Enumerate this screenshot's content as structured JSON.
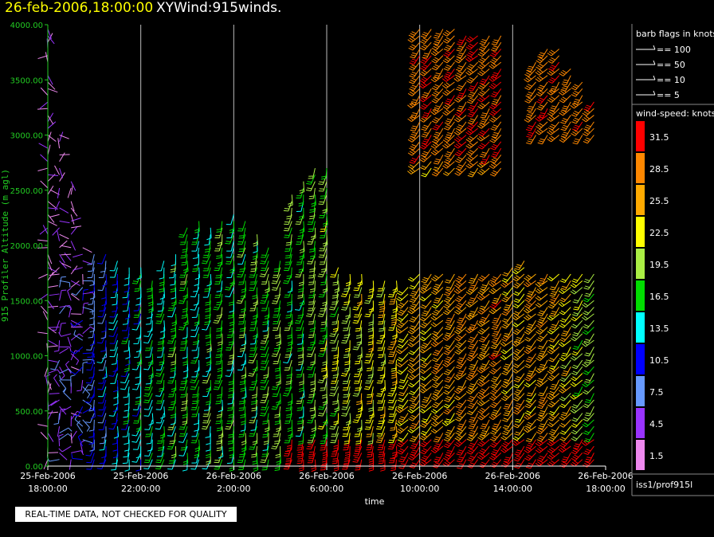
{
  "header": {
    "date": "26-feb-2006,18:00:00",
    "name": "XYWind:915winds."
  },
  "footer": {
    "qc_note": "REAL-TIME DATA, NOT CHECKED FOR QUALITY"
  },
  "legend": {
    "barb_title": "barb flags in knots",
    "barb_items": [
      "== 100",
      "== 50",
      "== 10",
      "== 5"
    ],
    "speed_title": "wind-speed: knots",
    "speed_bins": [
      {
        "label": "31.5",
        "color": "#ff0000"
      },
      {
        "label": "28.5",
        "color": "#ff8800"
      },
      {
        "label": "25.5",
        "color": "#ffaa00"
      },
      {
        "label": "22.5",
        "color": "#ffff00"
      },
      {
        "label": "19.5",
        "color": "#aaee44"
      },
      {
        "label": "16.5",
        "color": "#00dd00"
      },
      {
        "label": "13.5",
        "color": "#00ffff"
      },
      {
        "label": "10.5",
        "color": "#0000ff"
      },
      {
        "label": "7.5",
        "color": "#6699ff"
      },
      {
        "label": "4.5",
        "color": "#9933ff"
      },
      {
        "label": "1.5",
        "color": "#ee88ee"
      }
    ],
    "station": "iss1/prof915l"
  },
  "chart_data": {
    "type": "scatter",
    "subtype": "wind-barb time-height",
    "xlabel": "time",
    "ylabel": "915 Profiler Altitude (m agl)",
    "ylim": [
      0,
      4000
    ],
    "yticks": [
      "0.00",
      "500.00",
      "1000.00",
      "1500.00",
      "2000.00",
      "2500.00",
      "3000.00",
      "3500.00",
      "4000.00"
    ],
    "xticks": [
      {
        "date": "25-Feb-2006",
        "time": "18:00:00"
      },
      {
        "date": "25-Feb-2006",
        "time": "22:00:00"
      },
      {
        "date": "26-Feb-2006",
        "time": "2:00:00"
      },
      {
        "date": "26-Feb-2006",
        "time": "6:00:00"
      },
      {
        "date": "26-Feb-2006",
        "time": "10:00:00"
      },
      {
        "date": "26-Feb-2006",
        "time": "14:00:00"
      },
      {
        "date": "26-Feb-2006",
        "time": "18:00:00"
      }
    ],
    "xlim_hours": [
      0,
      24
    ],
    "grid": "vertical",
    "profile_interval_hours": 0.5,
    "profiles": [
      {
        "t": 0.0,
        "top": 4000,
        "spd": 3
      },
      {
        "t": 0.5,
        "top": 3000,
        "spd": 6
      },
      {
        "t": 1.0,
        "top": 2600,
        "spd": 5
      },
      {
        "t": 1.5,
        "top": 2000,
        "spd": 8
      },
      {
        "t": 2.0,
        "top": 1950,
        "spd": 9
      },
      {
        "t": 2.5,
        "top": 1950,
        "spd": 10
      },
      {
        "t": 3.0,
        "top": 1900,
        "spd": 12
      },
      {
        "t": 3.5,
        "top": 1800,
        "spd": 13
      },
      {
        "t": 4.0,
        "top": 1800,
        "spd": 14
      },
      {
        "t": 4.5,
        "top": 1700,
        "spd": 15
      },
      {
        "t": 5.0,
        "top": 1900,
        "spd": 15
      },
      {
        "t": 5.5,
        "top": 1950,
        "spd": 16
      },
      {
        "t": 6.0,
        "top": 2200,
        "spd": 16
      },
      {
        "t": 6.5,
        "top": 2250,
        "spd": 15
      },
      {
        "t": 7.0,
        "top": 2200,
        "spd": 16
      },
      {
        "t": 7.5,
        "top": 2250,
        "spd": 17
      },
      {
        "t": 8.0,
        "top": 2300,
        "spd": 16
      },
      {
        "t": 8.5,
        "top": 2250,
        "spd": 16
      },
      {
        "t": 9.0,
        "top": 2100,
        "spd": 17
      },
      {
        "t": 9.5,
        "top": 2000,
        "spd": 17
      },
      {
        "t": 10.0,
        "top": 1900,
        "spd": 18
      },
      {
        "t": 10.5,
        "top": 2500,
        "spd": 17
      },
      {
        "t": 11.0,
        "top": 2600,
        "spd": 17
      },
      {
        "t": 11.5,
        "top": 2700,
        "spd": 18
      },
      {
        "t": 12.0,
        "top": 2700,
        "spd": 19
      },
      {
        "t": 12.5,
        "top": 1800,
        "spd": 20
      },
      {
        "t": 13.0,
        "top": 1750,
        "spd": 21
      },
      {
        "t": 13.5,
        "top": 1750,
        "spd": 22
      },
      {
        "t": 14.0,
        "top": 1700,
        "spd": 22
      },
      {
        "t": 14.5,
        "top": 1700,
        "spd": 23
      },
      {
        "t": 15.0,
        "top": 1700,
        "spd": 24
      },
      {
        "t": 15.5,
        "top": 1650,
        "spd": 24
      },
      {
        "t": 16.0,
        "top": 4000,
        "spd": 25
      },
      {
        "t": 16.5,
        "top": 4000,
        "spd": 25
      },
      {
        "t": 17.0,
        "top": 4000,
        "spd": 26
      },
      {
        "t": 17.5,
        "top": 4000,
        "spd": 26
      },
      {
        "t": 18.0,
        "top": 3900,
        "spd": 27
      },
      {
        "t": 18.5,
        "top": 3900,
        "spd": 27
      },
      {
        "t": 19.0,
        "top": 3900,
        "spd": 27
      },
      {
        "t": 19.5,
        "top": 3900,
        "spd": 28
      },
      {
        "t": 20.0,
        "top": 1850,
        "spd": 25
      },
      {
        "t": 20.5,
        "top": 1900,
        "spd": 25
      },
      {
        "t": 21.0,
        "top": 3700,
        "spd": 26
      },
      {
        "t": 21.5,
        "top": 3800,
        "spd": 27
      },
      {
        "t": 22.0,
        "top": 3800,
        "spd": 25
      },
      {
        "t": 22.5,
        "top": 3600,
        "spd": 23
      },
      {
        "t": 23.0,
        "top": 3500,
        "spd": 20
      },
      {
        "t": 23.5,
        "top": 3300,
        "spd": 18
      }
    ]
  }
}
